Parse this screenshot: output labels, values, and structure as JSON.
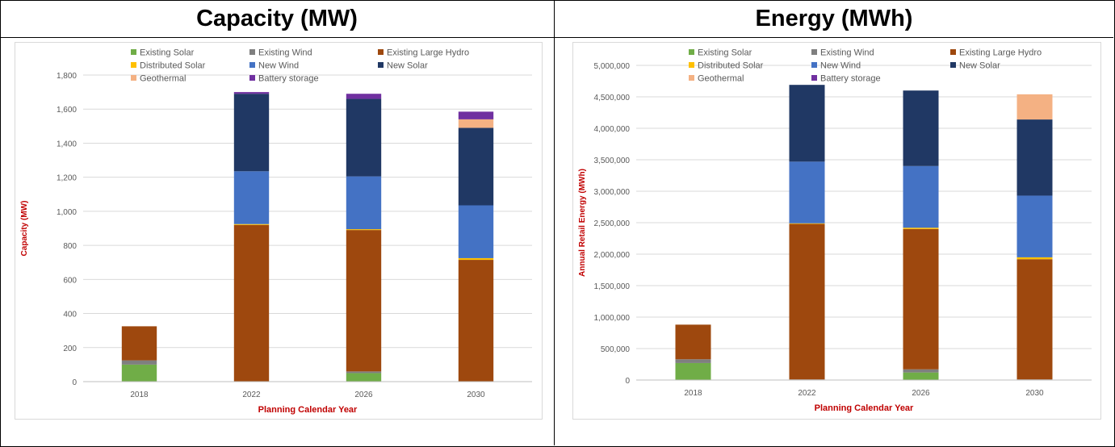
{
  "panels": [
    {
      "title": "Capacity (MW)"
    },
    {
      "title": "Energy (MWh)"
    }
  ],
  "legend": [
    {
      "name": "Existing Solar",
      "color": "#70ad47"
    },
    {
      "name": "Existing Wind",
      "color": "#7f7f7f"
    },
    {
      "name": "Existing Large Hydro",
      "color": "#9e480e"
    },
    {
      "name": "Distributed Solar",
      "color": "#ffc000"
    },
    {
      "name": "New Wind",
      "color": "#4472c4"
    },
    {
      "name": "New Solar",
      "color": "#203864"
    },
    {
      "name": "Geothermal",
      "color": "#f4b183"
    },
    {
      "name": "Battery storage",
      "color": "#7030a0"
    }
  ],
  "chart_data": [
    {
      "type": "bar",
      "stacked": true,
      "title": "",
      "xlabel": "Planning Calendar Year",
      "ylabel": "Capacity (MW)",
      "categories": [
        "2018",
        "2022",
        "2026",
        "2030"
      ],
      "ylim": [
        0,
        1800
      ],
      "yticks": [
        0,
        200,
        400,
        600,
        800,
        1000,
        1200,
        1400,
        1600,
        1800
      ],
      "ytick_labels": [
        "0",
        "200",
        "400",
        "600",
        "800",
        "1,000",
        "1,200",
        "1,400",
        "1,600",
        "1,800"
      ],
      "series": [
        {
          "name": "Existing Solar",
          "values": [
            100,
            0,
            50,
            0
          ]
        },
        {
          "name": "Existing Wind",
          "values": [
            25,
            0,
            10,
            0
          ]
        },
        {
          "name": "Existing Large Hydro",
          "values": [
            200,
            920,
            830,
            715
          ]
        },
        {
          "name": "Distributed Solar",
          "values": [
            0,
            5,
            5,
            10
          ]
        },
        {
          "name": "New Wind",
          "values": [
            0,
            310,
            310,
            310
          ]
        },
        {
          "name": "New Solar",
          "values": [
            0,
            455,
            455,
            455
          ]
        },
        {
          "name": "Geothermal",
          "values": [
            0,
            0,
            0,
            50
          ]
        },
        {
          "name": "Battery storage",
          "values": [
            0,
            10,
            30,
            45
          ]
        }
      ],
      "grid": true,
      "legend_position": "top"
    },
    {
      "type": "bar",
      "stacked": true,
      "title": "",
      "xlabel": "Planning Calendar Year",
      "ylabel": "Annual Retail Energy (MWh)",
      "categories": [
        "2018",
        "2022",
        "2026",
        "2030"
      ],
      "ylim": [
        0,
        5000000
      ],
      "yticks": [
        0,
        500000,
        1000000,
        1500000,
        2000000,
        2500000,
        3000000,
        3500000,
        4000000,
        4500000,
        5000000
      ],
      "ytick_labels": [
        "0",
        "500,000",
        "1,000,000",
        "1,500,000",
        "2,000,000",
        "2,500,000",
        "3,000,000",
        "3,500,000",
        "4,000,000",
        "4,500,000",
        "5,000,000"
      ],
      "series": [
        {
          "name": "Existing Solar",
          "values": [
            270000,
            0,
            120000,
            0
          ]
        },
        {
          "name": "Existing Wind",
          "values": [
            60000,
            10000,
            50000,
            10000
          ]
        },
        {
          "name": "Existing Large Hydro",
          "values": [
            550000,
            2470000,
            2230000,
            1910000
          ]
        },
        {
          "name": "Distributed Solar",
          "values": [
            0,
            10000,
            20000,
            30000
          ]
        },
        {
          "name": "New Wind",
          "values": [
            0,
            980000,
            980000,
            980000
          ]
        },
        {
          "name": "New Solar",
          "values": [
            0,
            1220000,
            1200000,
            1210000
          ]
        },
        {
          "name": "Geothermal",
          "values": [
            0,
            0,
            0,
            400000
          ]
        },
        {
          "name": "Battery storage",
          "values": [
            0,
            0,
            0,
            0
          ]
        }
      ],
      "grid": true,
      "legend_position": "top"
    }
  ]
}
